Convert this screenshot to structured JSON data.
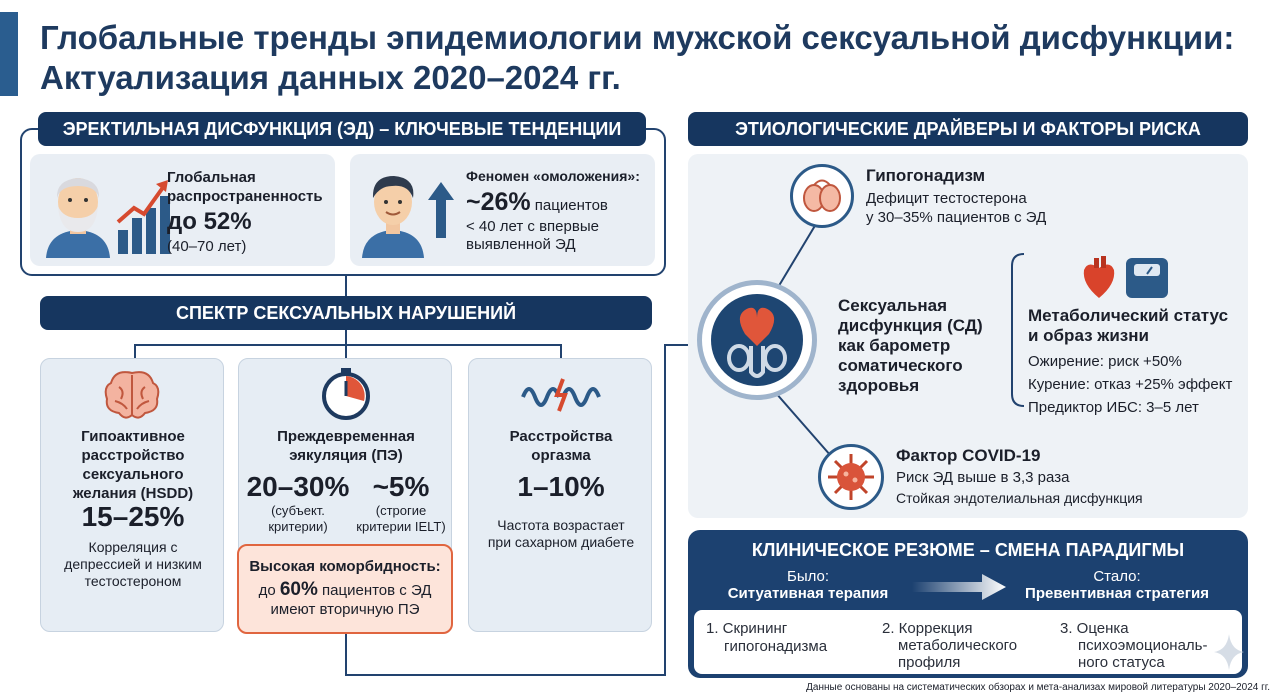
{
  "title": {
    "line1": "Глобальные тренды эпидемиологии мужской сексуальной дисфункции:",
    "line2": "Актуализация данных 2020–2024 гг."
  },
  "ed": {
    "header": "ЭРЕКТИЛЬНАЯ ДИСФУНКЦИЯ (ЭД) – КЛЮЧЕВЫЕ ТЕНДЕНЦИИ",
    "prevalence": {
      "label1": "Глобальная",
      "label2": "распространенность",
      "value_prefix": "до ",
      "value": "52%",
      "range": "(40–70 лет)"
    },
    "rejuvenation": {
      "label": "Феномен «омоложения»:",
      "value": "~26%",
      "value_suffix": " пациентов",
      "line2": "< 40 лет с впервые",
      "line3": "выявленной ЭД"
    }
  },
  "spectrum": {
    "header": "СПЕКТР СЕКСУАЛЬНЫХ НАРУШЕНИЙ",
    "hsdd": {
      "title1": "Гипоактивное",
      "title2": "расстройство",
      "title3": "сексуального",
      "title4": "желания (HSDD)",
      "value": "15–25%",
      "note1": "Корреляция с",
      "note2": "депрессией и низким",
      "note3": "тестостероном"
    },
    "pe": {
      "title1": "Преждевременная",
      "title2": "эякуляция (ПЭ)",
      "value1": "20–30%",
      "note1a": "(субъект.",
      "note1b": "критерии)",
      "value2": "~5%",
      "note2a": "(строгие",
      "note2b": "критерии IELT)",
      "comorb_title": "Высокая коморбидность:",
      "comorb_prefix": "до ",
      "comorb_value": "60%",
      "comorb_suffix": " пациентов с ЭД",
      "comorb_line2": "имеют вторичную ПЭ"
    },
    "orgasm": {
      "title1": "Расстройства",
      "title2": "оргазма",
      "value": "1–10%",
      "note1": "Частота возрастает",
      "note2": "при сахарном диабете"
    }
  },
  "etiology": {
    "header": "ЭТИОЛОГИЧЕСКИЕ ДРАЙВЕРЫ И ФАКТОРЫ РИСКА",
    "center": {
      "line1": "Сексуальная",
      "line2": "дисфункция (СД)",
      "line3": "как барометр",
      "line4": "соматического",
      "line5": "здоровья"
    },
    "hypogonadism": {
      "title": "Гипогонадизм",
      "line1": "Дефицит тестостерона",
      "line2": "у 30–35% пациентов с ЭД"
    },
    "metabolic": {
      "title1": "Метаболический статус",
      "title2": "и образ жизни",
      "line1": "Ожирение: риск +50%",
      "line2": "Курение: отказ +25% эффект",
      "line3": "Предиктор ИБС: 3–5 лет"
    },
    "covid": {
      "title": "Фактор COVID-19",
      "line1": "Риск ЭД выше в 3,3 раза",
      "line2": "Стойкая эндотелиальная дисфункция"
    }
  },
  "summary": {
    "header": "КЛИНИЧЕСКОЕ РЕЗЮМЕ – СМЕНА ПАРАДИГМЫ",
    "was_label": "Было:",
    "was_value": "Ситуативная терапия",
    "now_label": "Стало:",
    "now_value": "Превентивная стратегия",
    "step1a": "1. Скрининг",
    "step1b": "гипогонадизма",
    "step2a": "2. Коррекция",
    "step2b": "метаболического",
    "step2c": "профиля",
    "step3a": "3. Оценка",
    "step3b": "психоэмоциональ-",
    "step3c": "ного статуса"
  },
  "footnote": "Данные основаны на систематических обзорах и мета-анализах мировой литературы 2020–2024 гг.",
  "colors": {
    "navy": "#16365f",
    "accent_red": "#d64a2f",
    "card": "#e9eef4"
  },
  "icons": [
    "elderly-man-icon",
    "growth-chart-icon",
    "young-man-icon",
    "up-arrow-icon",
    "brain-icon",
    "timer-icon",
    "wave-icon",
    "testes-icon",
    "heart-icon",
    "scale-icon",
    "virus-icon",
    "male-anatomy-icon",
    "arrow-right-icon",
    "sparkle-icon"
  ]
}
